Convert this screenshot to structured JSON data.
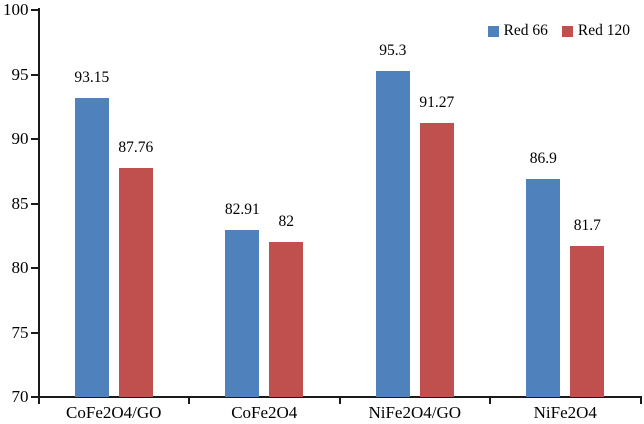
{
  "chart_data": {
    "type": "bar",
    "title": "",
    "xlabel": "",
    "ylabel": "",
    "categories": [
      "CoFe2O4/GO",
      "CoFe2O4",
      "NiFe2O4/GO",
      "NiFe2O4"
    ],
    "series": [
      {
        "name": "Red 66",
        "color": "#4F81BD",
        "values": [
          93.15,
          82.91,
          95.3,
          86.9
        ],
        "data_labels": [
          "93.15",
          "82.91",
          "95.3",
          "86.9"
        ]
      },
      {
        "name": "Red 120",
        "color": "#C0504D",
        "values": [
          87.76,
          82,
          91.27,
          81.7
        ],
        "data_labels": [
          "87.76",
          "82",
          "91.27",
          "81.7"
        ]
      }
    ],
    "ylim": [
      70,
      100
    ],
    "ytick_values": [
      100,
      95,
      90,
      85,
      80,
      75,
      70
    ],
    "ytick_labels": [
      "100",
      "95",
      "90",
      "85",
      "80",
      "75",
      "70"
    ],
    "grid": false,
    "legend_position": "top-right",
    "axis_color": "#1a1a1a",
    "background_color": "#ffffff"
  }
}
